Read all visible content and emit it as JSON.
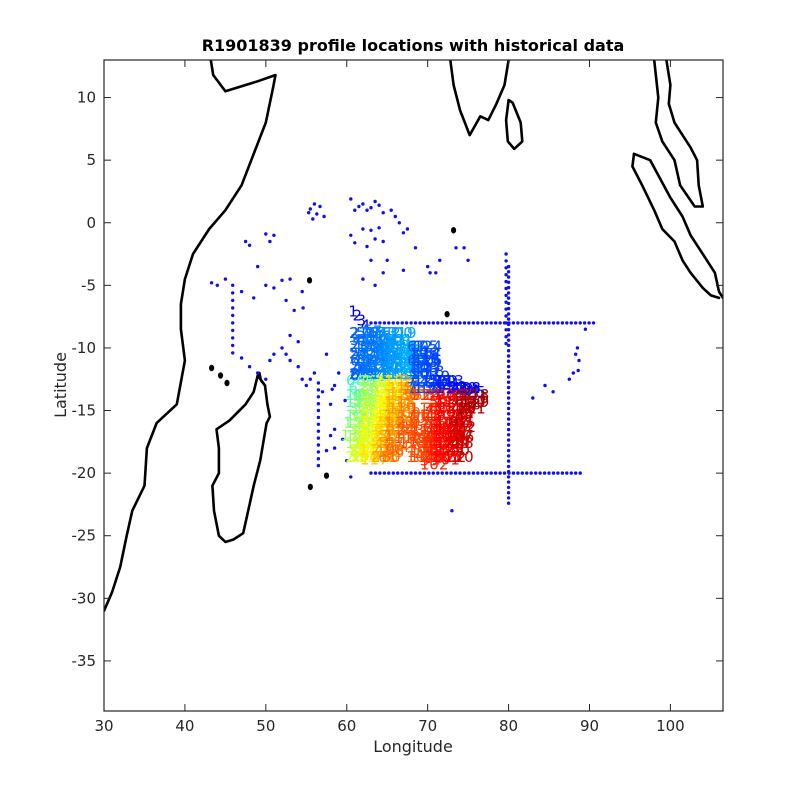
{
  "chart_data": {
    "type": "scatter",
    "title": "R1901839 profile locations with historical data",
    "xlabel": "Longitude",
    "ylabel": "Latitude",
    "xlim": [
      30,
      106.5
    ],
    "ylim": [
      -39,
      13
    ],
    "xticks": [
      30,
      40,
      50,
      60,
      70,
      80,
      90,
      100
    ],
    "yticks": [
      10,
      5,
      0,
      -5,
      -10,
      -15,
      -20,
      -25,
      -30,
      -35
    ],
    "grid": false,
    "legend": "none",
    "colors": {
      "coastline": "#000000",
      "historical": "#1010ee",
      "profile_colormap": "jet"
    },
    "coastlines": [
      [
        [
          30,
          -31
        ],
        [
          31,
          -29.5
        ],
        [
          32,
          -27.5
        ],
        [
          32.8,
          -25
        ],
        [
          33.5,
          -23
        ],
        [
          35,
          -21
        ],
        [
          35.3,
          -18
        ],
        [
          36.5,
          -16
        ],
        [
          39,
          -14.5
        ],
        [
          40,
          -11
        ],
        [
          39.5,
          -8.5
        ],
        [
          39.5,
          -6.5
        ],
        [
          40,
          -4.5
        ],
        [
          41,
          -2.5
        ],
        [
          43,
          -0.5
        ],
        [
          45,
          1
        ],
        [
          47,
          3
        ],
        [
          48.5,
          5.5
        ],
        [
          50,
          8
        ],
        [
          50.9,
          10.8
        ],
        [
          51.2,
          11.8
        ],
        [
          49,
          11.3
        ],
        [
          45,
          10.5
        ],
        [
          43.5,
          11.8
        ],
        [
          43.2,
          13
        ]
      ],
      [
        [
          44.2,
          -25
        ],
        [
          43.6,
          -23
        ],
        [
          43.4,
          -21
        ],
        [
          44.2,
          -20
        ],
        [
          44.2,
          -18
        ],
        [
          43.9,
          -16.5
        ],
        [
          45.5,
          -15.8
        ],
        [
          47.5,
          -14.5
        ],
        [
          48.5,
          -13.5
        ],
        [
          49,
          -12.2
        ],
        [
          49.9,
          -13
        ],
        [
          50.2,
          -14.5
        ],
        [
          50.5,
          -15.5
        ],
        [
          50.1,
          -16
        ],
        [
          49.7,
          -17.5
        ],
        [
          49.3,
          -19
        ],
        [
          48.5,
          -21
        ],
        [
          48,
          -22.5
        ],
        [
          47.2,
          -24.8
        ],
        [
          46,
          -25.3
        ],
        [
          45,
          -25.5
        ],
        [
          44.2,
          -25
        ]
      ],
      [
        [
          72.8,
          13
        ],
        [
          73.2,
          11
        ],
        [
          74,
          9
        ],
        [
          75.2,
          7
        ],
        [
          76.5,
          8.5
        ],
        [
          77.5,
          8.2
        ],
        [
          78.5,
          9.5
        ],
        [
          79.5,
          11
        ],
        [
          80,
          13
        ]
      ],
      [
        [
          80,
          9.8
        ],
        [
          79.7,
          8.2
        ],
        [
          79.9,
          6.5
        ],
        [
          80.7,
          5.9
        ],
        [
          81.7,
          6.5
        ],
        [
          81.5,
          8
        ],
        [
          80.5,
          9.6
        ],
        [
          80,
          9.8
        ]
      ],
      [
        [
          98,
          13
        ],
        [
          98.5,
          10
        ],
        [
          98.2,
          8
        ],
        [
          99,
          6.5
        ],
        [
          100.5,
          5
        ],
        [
          101.2,
          3
        ],
        [
          103,
          1.3
        ],
        [
          104,
          1.3
        ],
        [
          103.5,
          3
        ],
        [
          103.3,
          5
        ],
        [
          102.5,
          6
        ],
        [
          101.5,
          7
        ],
        [
          100.5,
          8
        ],
        [
          99.8,
          9.5
        ],
        [
          100,
          11
        ],
        [
          99.5,
          13
        ]
      ],
      [
        [
          95.5,
          5.5
        ],
        [
          97.5,
          5
        ],
        [
          98.5,
          3.8
        ],
        [
          100,
          2
        ],
        [
          101.5,
          0.5
        ],
        [
          102.5,
          -1
        ],
        [
          104,
          -2.5
        ],
        [
          105.5,
          -4
        ],
        [
          106,
          -5.5
        ],
        [
          106.5,
          -6
        ]
      ],
      [
        [
          95.5,
          5.5
        ],
        [
          95.3,
          4.5
        ],
        [
          96.5,
          3
        ],
        [
          98,
          1
        ],
        [
          99,
          -0.5
        ],
        [
          100.5,
          -1.5
        ],
        [
          101.5,
          -3
        ],
        [
          102.5,
          -4
        ],
        [
          104,
          -5.2
        ],
        [
          105,
          -5.8
        ],
        [
          106,
          -6
        ]
      ]
    ],
    "islands": [
      {
        "name": "Madagascar-n",
        "pts": [
          [
            49.2,
            -12
          ],
          [
            49.4,
            -12.6
          ],
          [
            49.9,
            -13
          ]
        ]
      },
      {
        "lon": 55.5,
        "lat": -21.1
      },
      {
        "lon": 57.5,
        "lat": -20.2
      },
      {
        "lon": 43.3,
        "lat": -11.6
      },
      {
        "lon": 44.4,
        "lat": -12.2
      },
      {
        "lon": 45.2,
        "lat": -12.8
      },
      {
        "lon": 55.4,
        "lat": -4.6
      },
      {
        "lon": 73.2,
        "lat": -0.6
      },
      {
        "lon": 72.4,
        "lat": -7.3
      }
    ],
    "historical_points": {
      "rows": [
        {
          "lat": -8,
          "lon_from": 63,
          "lon_to": 90.5,
          "step": 0.55
        },
        {
          "lat": -20,
          "lon_from": 63,
          "lon_to": 89,
          "step": 0.55
        }
      ],
      "columns": [
        {
          "lon": 80,
          "lat_from": -3.5,
          "lat_to": -22.5,
          "step": 0.42
        },
        {
          "lon": 79.7,
          "lat_from": -2.5,
          "lat_to": -10,
          "step": 0.55
        },
        {
          "lon": 45.9,
          "lat_from": -5,
          "lat_to": -10.5,
          "step": 0.6
        },
        {
          "lon": 56.5,
          "lat_from": -12.8,
          "lat_to": -19.5,
          "step": 0.55
        }
      ],
      "scatter": [
        [
          55.5,
          1.1
        ],
        [
          55.8,
          0.3
        ],
        [
          56.3,
          0.7
        ],
        [
          56.7,
          1.3
        ],
        [
          57.2,
          0.5
        ],
        [
          55.3,
          0.8
        ],
        [
          56,
          1.5
        ],
        [
          60.5,
          1.9
        ],
        [
          61,
          1
        ],
        [
          61.5,
          1.3
        ],
        [
          62,
          1.5
        ],
        [
          62.5,
          1
        ],
        [
          63,
          1.2
        ],
        [
          63.5,
          1.7
        ],
        [
          64,
          1.4
        ],
        [
          64.5,
          0.8
        ],
        [
          65.5,
          1
        ],
        [
          66,
          0.5
        ],
        [
          66.5,
          0
        ],
        [
          67,
          -0.8
        ],
        [
          67.5,
          -0.5
        ],
        [
          60.5,
          -1
        ],
        [
          61,
          -1.6
        ],
        [
          62,
          -0.5
        ],
        [
          63,
          -0.6
        ],
        [
          63.5,
          -1.3
        ],
        [
          64,
          -0.4
        ],
        [
          64.5,
          -1.5
        ],
        [
          62.5,
          -1.9
        ],
        [
          62,
          -4.5
        ],
        [
          63,
          -3
        ],
        [
          64.5,
          -4
        ],
        [
          65,
          -3
        ],
        [
          63.5,
          -5
        ],
        [
          67,
          -3.8
        ],
        [
          68.5,
          -2
        ],
        [
          71.5,
          -3
        ],
        [
          71,
          -4
        ],
        [
          70,
          -3.5
        ],
        [
          73.5,
          -2
        ],
        [
          74.5,
          -2
        ],
        [
          75,
          -3
        ],
        [
          47.5,
          -1.5
        ],
        [
          48,
          -1.8
        ],
        [
          49,
          -3.5
        ],
        [
          50,
          -0.9
        ],
        [
          50.5,
          -1.5
        ],
        [
          51,
          -1
        ],
        [
          43.3,
          -4.8
        ],
        [
          44,
          -5
        ],
        [
          45,
          -4.5
        ],
        [
          47,
          -5.5
        ],
        [
          48.5,
          -6
        ],
        [
          50,
          -5
        ],
        [
          51,
          -5.2
        ],
        [
          52,
          -4.6
        ],
        [
          53,
          -4.5
        ],
        [
          54.5,
          -5.5
        ],
        [
          52.5,
          -6.2
        ],
        [
          54.6,
          -6.8
        ],
        [
          47,
          -10.8
        ],
        [
          48,
          -11.5
        ],
        [
          49,
          -12
        ],
        [
          50,
          -12.5
        ],
        [
          50.5,
          -11
        ],
        [
          51,
          -10.5
        ],
        [
          52,
          -10
        ],
        [
          52.5,
          -10.5
        ],
        [
          53,
          -11
        ],
        [
          54,
          -11.5
        ],
        [
          54.5,
          -12.5
        ],
        [
          55,
          -13
        ],
        [
          55.5,
          -12.5
        ],
        [
          56,
          -12
        ],
        [
          57,
          -13.5
        ],
        [
          58,
          -14.5
        ],
        [
          53.5,
          -7
        ],
        [
          53,
          -9
        ],
        [
          54,
          -9.5
        ],
        [
          57.5,
          -10.5
        ],
        [
          58.5,
          -13
        ],
        [
          59,
          -12
        ],
        [
          58.5,
          -16.5
        ],
        [
          58,
          -17
        ],
        [
          57.5,
          -18.2
        ],
        [
          58.5,
          -18
        ],
        [
          60,
          -19
        ],
        [
          59.5,
          -17.3
        ],
        [
          58.2,
          -13.3
        ],
        [
          59.8,
          -14.2
        ],
        [
          83,
          -14
        ],
        [
          84.5,
          -13
        ],
        [
          85.5,
          -13.5
        ],
        [
          87.5,
          -12.5
        ],
        [
          88,
          -12
        ],
        [
          88.3,
          -10.5
        ],
        [
          88.5,
          -10
        ],
        [
          88.7,
          -11
        ],
        [
          89.5,
          -8.5
        ],
        [
          88.6,
          -11.8
        ],
        [
          70.3,
          -4
        ],
        [
          73,
          -23
        ],
        [
          60.5,
          -20.3
        ]
      ]
    },
    "profile_track": {
      "comment_free": true,
      "count": 130,
      "path": [
        [
          60.8,
          -7.1
        ],
        [
          61.3,
          -7.4
        ],
        [
          61.8,
          -7.8
        ],
        [
          62.3,
          -8.2
        ],
        [
          62.6,
          -8.6
        ],
        [
          63.2,
          -8.8
        ],
        [
          63.8,
          -8.7
        ],
        [
          64.4,
          -9
        ],
        [
          65,
          -9.3
        ],
        [
          65.7,
          -9.5
        ],
        [
          66.4,
          -9.7
        ],
        [
          67.2,
          -9.9
        ],
        [
          68.1,
          -10.2
        ],
        [
          68.9,
          -10.3
        ],
        [
          69.7,
          -10.5
        ],
        [
          70.3,
          -10.9
        ],
        [
          70.6,
          -11.4
        ],
        [
          70.9,
          -11.9
        ],
        [
          71.6,
          -12.3
        ],
        [
          72.3,
          -12.7
        ],
        [
          72.9,
          -12.9
        ],
        [
          73.7,
          -13.1
        ],
        [
          74.5,
          -13.3
        ],
        [
          75.3,
          -13.4
        ],
        [
          76,
          -13.5
        ],
        [
          76.4,
          -14
        ],
        [
          76.1,
          -14.4
        ],
        [
          75.4,
          -14.5
        ],
        [
          74.8,
          -14.8
        ],
        [
          74.5,
          -15.3
        ],
        [
          74.6,
          -15.8
        ],
        [
          74.8,
          -16.3
        ],
        [
          74.3,
          -16.7
        ],
        [
          73.6,
          -17.2
        ],
        [
          72.8,
          -17.5
        ],
        [
          72,
          -17.8
        ],
        [
          71.3,
          -18.2
        ],
        [
          70.8,
          -18.8
        ],
        [
          70.2,
          -19
        ],
        [
          69.6,
          -18.6
        ],
        [
          69.3,
          -17.9
        ],
        [
          68.9,
          -17.2
        ],
        [
          68.4,
          -16.6
        ],
        [
          67.8,
          -16.2
        ],
        [
          67.1,
          -15.9
        ],
        [
          66.5,
          -15.5
        ],
        [
          65.8,
          -15.1
        ],
        [
          65.2,
          -15.4
        ],
        [
          64.7,
          -15.8
        ],
        [
          64.1,
          -16
        ],
        [
          63.5,
          -16.2
        ],
        [
          62.9,
          -16.6
        ],
        [
          62.3,
          -17.1
        ],
        [
          61.7,
          -17.6
        ],
        [
          61.4,
          -18.2
        ],
        [
          61.8,
          -18.4
        ],
        [
          62.4,
          -18
        ],
        [
          63.1,
          -17.6
        ],
        [
          63.7,
          -17.3
        ],
        [
          64.2,
          -16.7
        ],
        [
          64.6,
          -16.3
        ],
        [
          64.4,
          -15.6
        ],
        [
          63.9,
          -15
        ],
        [
          63.3,
          -14.6
        ],
        [
          62.6,
          -14.2
        ],
        [
          61.9,
          -13.8
        ],
        [
          61.4,
          -13.2
        ],
        [
          61.1,
          -12.6
        ],
        [
          61.6,
          -12.2
        ],
        [
          62.2,
          -11.8
        ],
        [
          62.8,
          -11.4
        ],
        [
          63.5,
          -11
        ],
        [
          64.2,
          -10.7
        ],
        [
          64.9,
          -10.5
        ],
        [
          65.6,
          -10.9
        ],
        [
          66.3,
          -11.3
        ]
      ],
      "cluster_extra": [
        [
          62.5,
          -9.5
        ],
        [
          63,
          -10
        ],
        [
          63.6,
          -9.8
        ],
        [
          64.2,
          -10
        ],
        [
          65.2,
          -10.2
        ],
        [
          66,
          -10.4
        ],
        [
          66.8,
          -10.6
        ],
        [
          67.5,
          -10.8
        ],
        [
          68.3,
          -11.2
        ],
        [
          69,
          -11.5
        ],
        [
          69.6,
          -11.7
        ],
        [
          63.4,
          -10.6
        ],
        [
          64.6,
          -11
        ],
        [
          65.8,
          -11.6
        ],
        [
          62.8,
          -12.6
        ],
        [
          63.7,
          -12.2
        ],
        [
          71.1,
          -17.2
        ],
        [
          71.7,
          -16.6
        ],
        [
          72.4,
          -16.3
        ],
        [
          73.2,
          -16.1
        ],
        [
          73.9,
          -15.9
        ],
        [
          70.5,
          -17.6
        ],
        [
          69.9,
          -17.4
        ],
        [
          71.4,
          -18.6
        ],
        [
          72.2,
          -18.9
        ],
        [
          70.8,
          -19.3
        ],
        [
          69.2,
          -18.3
        ],
        [
          73.4,
          -17.6
        ],
        [
          72.6,
          -17.0
        ],
        [
          74.0,
          -17.1
        ],
        [
          65.5,
          -14.2
        ],
        [
          66.2,
          -14.6
        ],
        [
          67.4,
          -15.2
        ],
        [
          68,
          -15.6
        ],
        [
          66.8,
          -16.6
        ],
        [
          67.6,
          -17.2
        ],
        [
          68.2,
          -17.6
        ],
        [
          66.0,
          -17.9
        ],
        [
          65.4,
          -18.3
        ],
        [
          64.6,
          -18.7
        ],
        [
          63.4,
          -18.9
        ],
        [
          62.2,
          -18.6
        ],
        [
          61.0,
          -17.0
        ],
        [
          61.3,
          -16.0
        ],
        [
          62.1,
          -15.4
        ],
        [
          63.0,
          -15.6
        ],
        [
          64.0,
          -14.3
        ],
        [
          65.0,
          -13.5
        ],
        [
          66.0,
          -13.2
        ],
        [
          67.0,
          -13.6
        ]
      ],
      "labels_numeric": true
    }
  }
}
